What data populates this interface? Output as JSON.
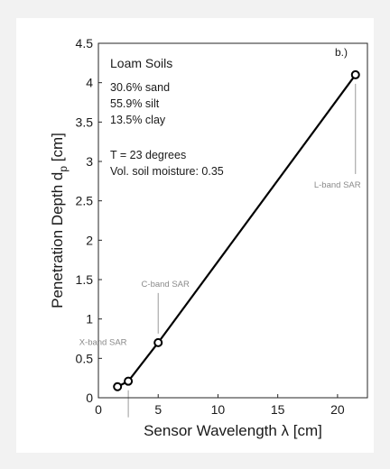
{
  "chart_data": {
    "type": "line",
    "panel_label": "b.)",
    "xlabel": "Sensor Wavelength λ [cm]",
    "ylabel_main": "Penetration Depth d",
    "ylabel_sub": "p",
    "ylabel_unit": " [cm]",
    "xlim": [
      0,
      22.5
    ],
    "ylim": [
      0,
      4.5
    ],
    "xticks": [
      0,
      5,
      10,
      15,
      20
    ],
    "yticks": [
      0,
      0.5,
      1,
      1.5,
      2,
      2.5,
      3,
      3.5,
      4,
      4.5
    ],
    "grid": false,
    "series": [
      {
        "x": [
          1.6,
          2.5,
          5.0,
          21.5
        ],
        "y": [
          0.14,
          0.21,
          0.7,
          4.1
        ],
        "color": "#000000",
        "marker": "open-circle"
      }
    ],
    "annotations": [
      {
        "text": "X-band SAR",
        "x_data": 2.5,
        "y_data": 0.21
      },
      {
        "text": "C-band SAR",
        "x_data": 5.0,
        "y_data": 0.7
      },
      {
        "text": "L-band SAR",
        "x_data": 21.5,
        "y_data": 4.1
      }
    ],
    "info": {
      "title": "Loam Soils",
      "lines": [
        "30.6% sand",
        "55.9% silt",
        "13.5% clay"
      ],
      "conditions": [
        "T = 23 degrees",
        "Vol. soil moisture: 0.35"
      ]
    }
  }
}
